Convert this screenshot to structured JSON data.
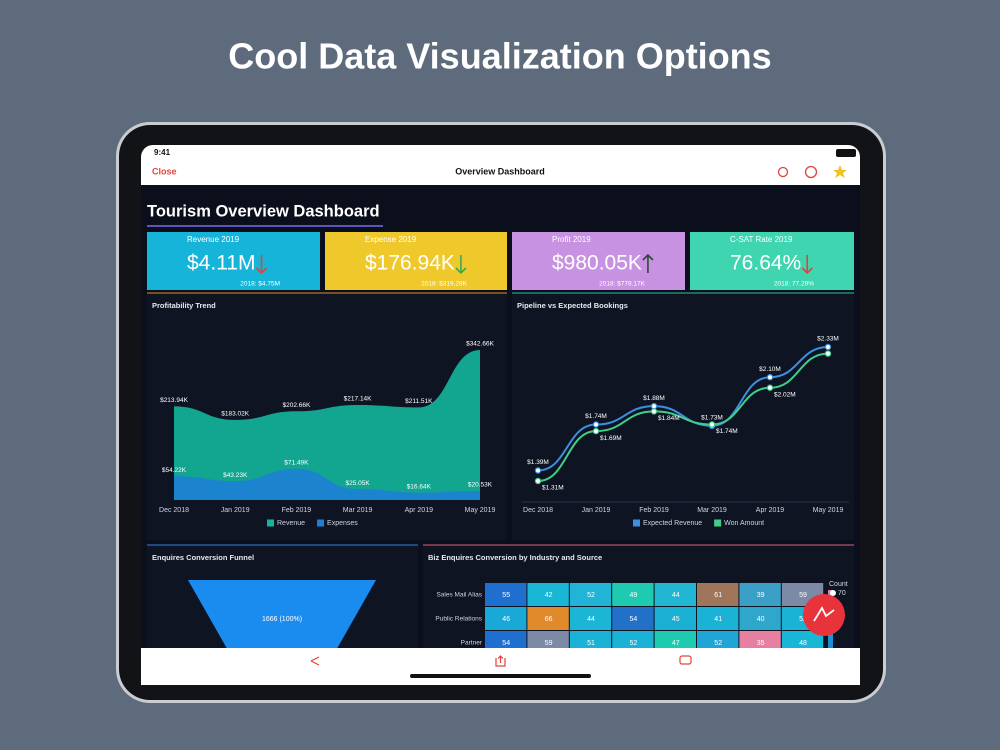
{
  "headline": "Cool Data Visualization Options",
  "status_bar": {
    "time": "9:41"
  },
  "nav": {
    "close": "Close",
    "title": "Overview Dashboard"
  },
  "dashboard": {
    "title": "Tourism Overview Dashboard",
    "kpis": [
      {
        "label": "Revenue 2019",
        "value": "$4.11M",
        "previous": "2018: $4.75M",
        "color": "#17b4d9",
        "trend": "down",
        "trend_color": "#e0433a"
      },
      {
        "label": "Expense 2019",
        "value": "$176.94K",
        "previous": "2018: $319.28K",
        "color": "#efc92b",
        "trend": "down",
        "trend_color": "#2fae5a"
      },
      {
        "label": "Profit 2019",
        "value": "$980.05K",
        "previous": "2018: $778.17K",
        "color": "#c892e2",
        "trend": "up",
        "trend_color": "#2b4a34"
      },
      {
        "label": "C-SAT Rate 2019",
        "value": "76.64%",
        "previous": "2018: 77.29%",
        "color": "#3ed5b0",
        "trend": "down",
        "trend_color": "#e0433a"
      }
    ]
  },
  "chart_data": [
    {
      "type": "area",
      "title": "Profitability Trend",
      "categories": [
        "Dec 2018",
        "Jan 2019",
        "Feb 2019",
        "Mar 2019",
        "Apr 2019",
        "May 2019"
      ],
      "series": [
        {
          "name": "Revenue",
          "color": "#13b59c",
          "values": [
            213.94,
            183.02,
            202.66,
            217.14,
            211.51,
            342.66
          ],
          "value_labels": [
            "$213.94K",
            "$183.02K",
            "$202.66K",
            "$217.14K",
            "$211.51K",
            "$342.66K"
          ]
        },
        {
          "name": "Expenses",
          "color": "#1e7fd6",
          "values": [
            54.22,
            43.23,
            71.49,
            25.05,
            16.64,
            20.53
          ],
          "value_labels": [
            "$54.22K",
            "$43.23K",
            "$71.49K",
            "$25.05K",
            "$16.64K",
            "$20.53K"
          ]
        }
      ]
    },
    {
      "type": "line",
      "title": "Pipeline vs Expected Bookings",
      "categories": [
        "Dec 2018",
        "Jan 2019",
        "Feb 2019",
        "Mar 2019",
        "Apr 2019",
        "May 2019"
      ],
      "series": [
        {
          "name": "Expected Revenue",
          "color": "#3c8fe3",
          "values": [
            1.39,
            1.74,
            1.88,
            1.73,
            2.1,
            2.33
          ],
          "value_labels": [
            "$1.39M",
            "$1.74M",
            "$1.88M",
            "$1.73M",
            "$2.10M",
            "$2.33M"
          ]
        },
        {
          "name": "Won Amount",
          "color": "#3fcf8b",
          "values": [
            1.31,
            1.69,
            1.84,
            1.74,
            2.02,
            2.28
          ],
          "value_labels": [
            "$1.31M",
            "$1.69M",
            "$1.84M",
            "$1.74M",
            "$2.02M",
            null
          ]
        }
      ]
    },
    {
      "type": "funnel",
      "title": "Enquires Conversion Funnel",
      "values": [
        1666
      ],
      "value_labels": [
        "1666 (100%)"
      ],
      "color": "#1a8cf0"
    },
    {
      "type": "heatmap",
      "title": "Biz Enquires Conversion by Industry and Source",
      "rows": [
        "Sales Mail Alias",
        "Public Relations",
        "Partner"
      ],
      "values": [
        [
          55,
          42,
          52,
          49,
          44,
          61,
          39,
          59
        ],
        [
          46,
          66,
          44,
          54,
          45,
          41,
          40,
          52
        ],
        [
          54,
          59,
          51,
          52,
          47,
          52,
          35,
          48
        ]
      ],
      "colors": [
        [
          "#1f6fd1",
          "#1ab6d6",
          "#22b4d6",
          "#1ecab0",
          "#21b7d3",
          "#a0765a",
          "#3aa0c7",
          "#7c8aa6"
        ],
        [
          "#1aa8d6",
          "#e08a2c",
          "#1bb5d6",
          "#2270c8",
          "#1ab0d2",
          "#1ab3d5",
          "#2fa6cc",
          "#1ab3d5"
        ],
        [
          "#1f6fd1",
          "#7c8aa6",
          "#1ab3d5",
          "#1ab3d5",
          "#1ecab0",
          "#1fa6d6",
          "#e67fa0",
          "#1ab6d6"
        ]
      ],
      "legend_title": "Count",
      "legend_ticks": [
        70
      ]
    }
  ]
}
